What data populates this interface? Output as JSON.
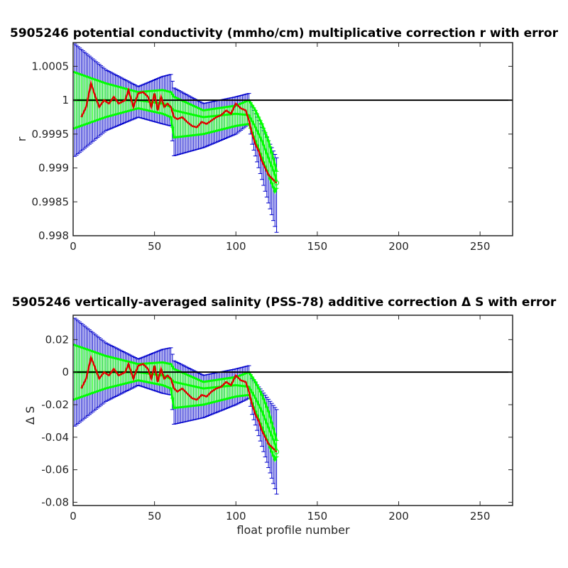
{
  "chart_data": [
    {
      "type": "line",
      "title": "5905246 potential conductivity (mmho/cm) multiplicative correction r with error",
      "xlabel": "",
      "ylabel": "r",
      "xlim": [
        0,
        270
      ],
      "ylim": [
        0.998,
        1.00085
      ],
      "xticks": [
        "0",
        "50",
        "100",
        "150",
        "200",
        "250"
      ],
      "yticks": [
        "0.998",
        "0.9985",
        "0.999",
        "0.9995",
        "1",
        "1.0005"
      ],
      "reference_line": 1.0,
      "series": [
        {
          "role": "correction estimate (red)",
          "x": [
            5,
            8,
            11,
            13,
            16,
            19,
            22,
            25,
            28,
            32,
            34,
            37,
            40,
            43,
            46,
            48,
            50,
            52,
            54,
            56,
            58,
            60,
            62,
            64,
            67,
            70,
            73,
            76,
            79,
            82,
            85,
            88,
            91,
            94,
            97,
            100,
            103,
            106,
            108,
            110,
            112,
            114,
            116,
            118,
            120,
            122,
            124,
            125
          ],
          "values": [
            0.99975,
            0.9999,
            1.00025,
            1.0001,
            0.9999,
            1.0,
            0.99995,
            1.00005,
            0.99995,
            1.0,
            1.00015,
            0.9999,
            1.0001,
            1.00012,
            1.00005,
            0.9999,
            1.0001,
            0.99985,
            1.00005,
            0.9999,
            0.99995,
            0.9999,
            0.99975,
            0.99972,
            0.99975,
            0.99968,
            0.99962,
            0.9996,
            0.99968,
            0.99965,
            0.9997,
            0.99975,
            0.99978,
            0.99985,
            0.9998,
            0.99995,
            0.99988,
            0.99985,
            0.9997,
            0.9995,
            0.99935,
            0.99925,
            0.9991,
            0.999,
            0.9989,
            0.99885,
            0.9988,
            0.99878
          ]
        },
        {
          "role": "fit (green)",
          "x": [
            0,
            20,
            40,
            55,
            60,
            62,
            80,
            100,
            108,
            112,
            116,
            120,
            124,
            125
          ],
          "values": [
            1.0,
            1.0,
            1.0,
            0.99995,
            0.9999,
            0.99985,
            0.99975,
            0.9998,
            0.99978,
            0.9996,
            0.9994,
            0.99915,
            0.9989,
            0.9988
          ]
        },
        {
          "role": "fit error upper (green)",
          "x": [
            0,
            20,
            40,
            55,
            60,
            62,
            80,
            100,
            108,
            112,
            116,
            120,
            124,
            125
          ],
          "values": [
            1.00042,
            1.00025,
            1.00012,
            1.00015,
            1.00012,
            1.00005,
            0.99985,
            0.99992,
            1.0,
            0.99985,
            0.99965,
            0.9994,
            0.99905,
            0.99895
          ]
        },
        {
          "role": "fit error lower (green)",
          "x": [
            0,
            20,
            40,
            55,
            60,
            62,
            80,
            100,
            108,
            112,
            116,
            120,
            124,
            125
          ],
          "values": [
            0.99958,
            0.99975,
            0.99988,
            0.9998,
            0.99975,
            0.99945,
            0.9995,
            0.99962,
            0.99965,
            0.9994,
            0.99915,
            0.9989,
            0.99865,
            0.9987
          ]
        },
        {
          "role": "total error upper (blue)",
          "x": [
            0,
            20,
            40,
            55,
            60,
            62,
            80,
            100,
            108,
            110,
            125
          ],
          "values": [
            1.00085,
            1.00045,
            1.0002,
            1.00035,
            1.00038,
            1.00018,
            0.99995,
            1.00005,
            1.0001,
            0.9999,
            0.99915
          ]
        },
        {
          "role": "total error lower (blue)",
          "x": [
            0,
            20,
            40,
            55,
            60,
            62,
            80,
            100,
            108,
            110,
            125
          ],
          "values": [
            0.99915,
            0.99955,
            0.99975,
            0.99965,
            0.99962,
            0.99918,
            0.9993,
            0.9995,
            0.99965,
            0.99935,
            0.99805
          ]
        }
      ]
    },
    {
      "type": "line",
      "title": "5905246 vertically-averaged salinity (PSS-78) additive correction Δ S with error",
      "xlabel": "float profile number",
      "ylabel": "Δ S",
      "xlim": [
        0,
        270
      ],
      "ylim": [
        -0.082,
        0.035
      ],
      "xticks": [
        "0",
        "50",
        "100",
        "150",
        "200",
        "250"
      ],
      "yticks": [
        "-0.08",
        "-0.06",
        "-0.04",
        "-0.02",
        "0",
        "0.02"
      ],
      "reference_line": 0.0,
      "series": [
        {
          "role": "correction estimate (red)",
          "x": [
            5,
            8,
            11,
            13,
            16,
            19,
            22,
            25,
            28,
            32,
            34,
            37,
            40,
            43,
            46,
            48,
            50,
            52,
            54,
            56,
            58,
            60,
            62,
            64,
            67,
            70,
            73,
            76,
            79,
            82,
            85,
            88,
            91,
            94,
            97,
            100,
            103,
            106,
            108,
            110,
            112,
            114,
            116,
            118,
            120,
            122,
            124,
            125
          ],
          "values": [
            -0.01,
            -0.004,
            0.009,
            0.004,
            -0.004,
            0.0,
            -0.002,
            0.002,
            -0.002,
            0.0,
            0.005,
            -0.004,
            0.004,
            0.005,
            0.002,
            -0.004,
            0.004,
            -0.006,
            0.002,
            -0.004,
            -0.002,
            -0.004,
            -0.01,
            -0.012,
            -0.01,
            -0.013,
            -0.016,
            -0.017,
            -0.014,
            -0.015,
            -0.012,
            -0.01,
            -0.009,
            -0.006,
            -0.008,
            -0.002,
            -0.005,
            -0.006,
            -0.012,
            -0.02,
            -0.026,
            -0.03,
            -0.036,
            -0.04,
            -0.044,
            -0.046,
            -0.048,
            -0.049
          ]
        },
        {
          "role": "fit (green)",
          "x": [
            0,
            20,
            40,
            55,
            60,
            62,
            80,
            100,
            108,
            112,
            116,
            120,
            124,
            125
          ],
          "values": [
            0.0,
            0.0,
            0.0,
            -0.002,
            -0.004,
            -0.006,
            -0.01,
            -0.008,
            -0.009,
            -0.016,
            -0.024,
            -0.034,
            -0.044,
            -0.048
          ]
        },
        {
          "role": "fit error upper (green)",
          "x": [
            0,
            20,
            40,
            55,
            60,
            62,
            80,
            100,
            108,
            112,
            116,
            120,
            124,
            125
          ],
          "values": [
            0.017,
            0.01,
            0.005,
            0.006,
            0.005,
            0.002,
            -0.006,
            -0.003,
            0.0,
            -0.006,
            -0.014,
            -0.024,
            -0.038,
            -0.042
          ]
        },
        {
          "role": "fit error lower (green)",
          "x": [
            0,
            20,
            40,
            55,
            60,
            62,
            80,
            100,
            108,
            112,
            116,
            120,
            124,
            125
          ],
          "values": [
            -0.017,
            -0.01,
            -0.005,
            -0.008,
            -0.01,
            -0.022,
            -0.02,
            -0.015,
            -0.014,
            -0.024,
            -0.034,
            -0.044,
            -0.054,
            -0.052
          ]
        },
        {
          "role": "total error upper (blue)",
          "x": [
            0,
            20,
            40,
            55,
            60,
            62,
            80,
            100,
            108,
            110,
            125
          ],
          "values": [
            0.034,
            0.018,
            0.008,
            0.014,
            0.015,
            0.007,
            -0.002,
            0.002,
            0.004,
            -0.004,
            -0.023
          ]
        },
        {
          "role": "total error lower (blue)",
          "x": [
            0,
            20,
            40,
            55,
            60,
            62,
            80,
            100,
            108,
            110,
            125
          ],
          "values": [
            -0.034,
            -0.018,
            -0.008,
            -0.013,
            -0.014,
            -0.032,
            -0.028,
            -0.02,
            -0.016,
            -0.026,
            -0.075
          ]
        }
      ]
    }
  ]
}
